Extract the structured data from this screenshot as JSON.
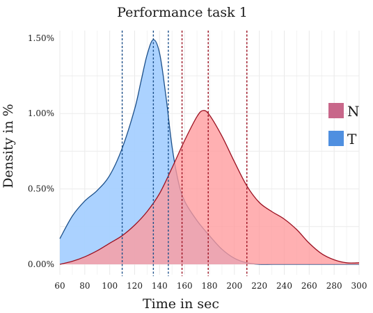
{
  "chart_data": {
    "type": "area",
    "title": "Performance task 1",
    "xlabel": "Time in sec",
    "ylabel": "Density in %",
    "xlim": [
      60,
      300
    ],
    "ylim": [
      0,
      0.0155
    ],
    "x_ticks": [
      60,
      80,
      100,
      120,
      140,
      160,
      180,
      200,
      220,
      240,
      260,
      280,
      300
    ],
    "x_tick_labels": [
      "60",
      "80",
      "100",
      "120",
      "140",
      "160",
      "180",
      "200",
      "220",
      "240",
      "260",
      "280",
      "300"
    ],
    "y_ticks": [
      0,
      0.005,
      0.01,
      0.015
    ],
    "y_tick_labels": [
      "0.00%",
      "0.50%",
      "1.00%",
      "1.50%"
    ],
    "grid": true,
    "legend_position": "right",
    "series": [
      {
        "name": "N",
        "fill": "#ff9a9c",
        "stroke": "#9b1020",
        "legend_color": "#c8678a",
        "vlines": [
          158,
          179,
          210
        ],
        "x": [
          60,
          70,
          80,
          90,
          100,
          110,
          120,
          130,
          140,
          150,
          160,
          170,
          175,
          180,
          190,
          200,
          210,
          220,
          230,
          240,
          250,
          260,
          270,
          280,
          290,
          300
        ],
        "y": [
          0.0,
          0.0002,
          0.0005,
          0.0009,
          0.0014,
          0.0019,
          0.0026,
          0.0035,
          0.0047,
          0.0064,
          0.0082,
          0.0098,
          0.0102,
          0.0099,
          0.0085,
          0.0068,
          0.0052,
          0.0041,
          0.0035,
          0.003,
          0.0023,
          0.0014,
          0.0007,
          0.0003,
          0.0001,
          0.0001
        ]
      },
      {
        "name": "T",
        "fill": "#a6d0ff",
        "stroke": "#1b4f8a",
        "legend_color": "#4f8fe0",
        "vlines": [
          110,
          135,
          147
        ],
        "x": [
          60,
          70,
          80,
          90,
          100,
          110,
          120,
          125,
          130,
          135,
          140,
          145,
          150,
          155,
          160,
          170,
          180,
          190,
          200,
          210,
          220,
          230,
          240,
          260,
          280,
          300
        ],
        "y": [
          0.0017,
          0.0032,
          0.0042,
          0.0049,
          0.0059,
          0.0077,
          0.0103,
          0.0121,
          0.0139,
          0.0149,
          0.014,
          0.0112,
          0.0078,
          0.0055,
          0.0042,
          0.0029,
          0.0019,
          0.001,
          0.0004,
          0.0001,
          0.0,
          0.0,
          0.0,
          0.0,
          0.0,
          0.0
        ]
      }
    ]
  }
}
